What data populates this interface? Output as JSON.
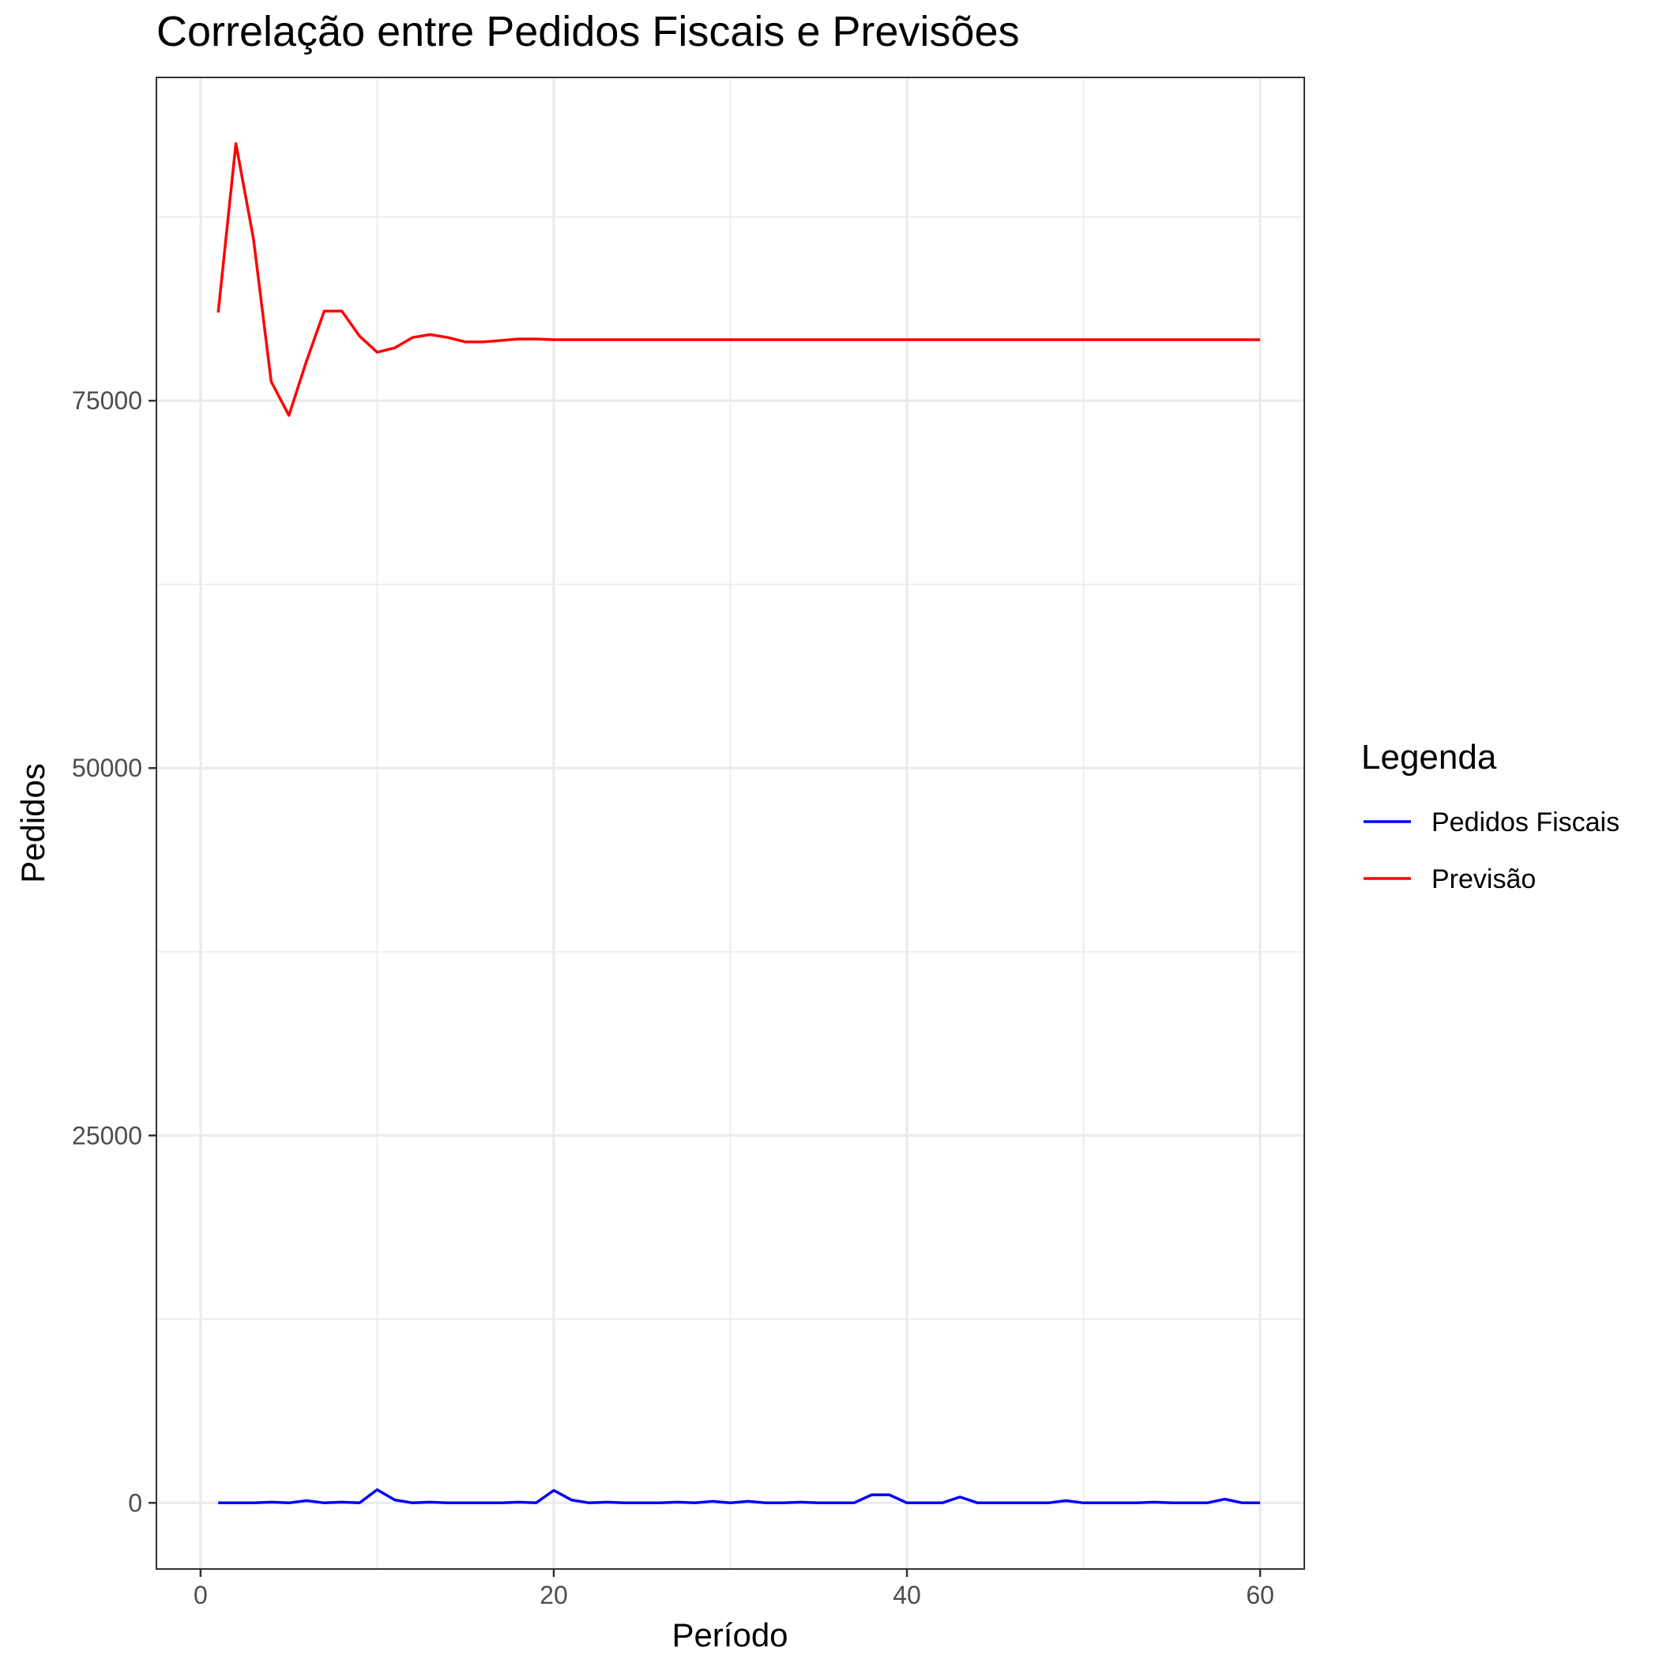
{
  "chart_data": {
    "type": "line",
    "title": "Correlação entre Pedidos Fiscais e Previsões",
    "xlabel": "Período",
    "ylabel": "Pedidos",
    "xlim": [
      -2.5,
      62.5
    ],
    "ylim": [
      -4500,
      97000
    ],
    "x_ticks": [
      0,
      20,
      40,
      60
    ],
    "y_ticks": [
      0,
      25000,
      50000,
      75000
    ],
    "x_minor_ticks": [
      10,
      30,
      50
    ],
    "y_minor_ticks": [
      12500,
      37500,
      62500,
      87500
    ],
    "grid": true,
    "legend_position": "right",
    "legend_title": "Legenda",
    "colors": {
      "Pedidos Fiscais": "#0000ff",
      "Previsão": "#ff0000"
    },
    "x": [
      1,
      2,
      3,
      4,
      5,
      6,
      7,
      8,
      9,
      10,
      11,
      12,
      13,
      14,
      15,
      16,
      17,
      18,
      19,
      20,
      21,
      22,
      23,
      24,
      25,
      26,
      27,
      28,
      29,
      30,
      31,
      32,
      33,
      34,
      35,
      36,
      37,
      38,
      39,
      40,
      41,
      42,
      43,
      44,
      45,
      46,
      47,
      48,
      49,
      50,
      51,
      52,
      53,
      54,
      55,
      56,
      57,
      58,
      59,
      60
    ],
    "series": [
      {
        "name": "Pedidos Fiscais",
        "color": "#0000ff",
        "values": [
          0,
          0,
          0,
          50,
          0,
          150,
          0,
          50,
          0,
          900,
          200,
          0,
          50,
          0,
          0,
          0,
          0,
          50,
          0,
          850,
          200,
          0,
          50,
          0,
          0,
          0,
          50,
          0,
          100,
          0,
          100,
          0,
          0,
          50,
          0,
          0,
          0,
          550,
          550,
          0,
          0,
          0,
          400,
          0,
          0,
          0,
          0,
          0,
          150,
          0,
          0,
          0,
          0,
          50,
          0,
          0,
          0,
          250,
          0,
          0
        ]
      },
      {
        "name": "Previsão",
        "color": "#ff0000",
        "values": [
          81000,
          92500,
          86000,
          76300,
          74000,
          77700,
          81100,
          81100,
          79400,
          78300,
          78600,
          79300,
          79500,
          79300,
          79000,
          79000,
          79100,
          79200,
          79200,
          79150,
          79150,
          79150,
          79150,
          79150,
          79150,
          79150,
          79150,
          79150,
          79150,
          79150,
          79150,
          79150,
          79150,
          79150,
          79150,
          79150,
          79150,
          79150,
          79150,
          79150,
          79150,
          79150,
          79150,
          79150,
          79150,
          79150,
          79150,
          79150,
          79150,
          79150,
          79150,
          79150,
          79150,
          79150,
          79150,
          79150,
          79150,
          79150,
          79150,
          79150
        ]
      }
    ]
  }
}
